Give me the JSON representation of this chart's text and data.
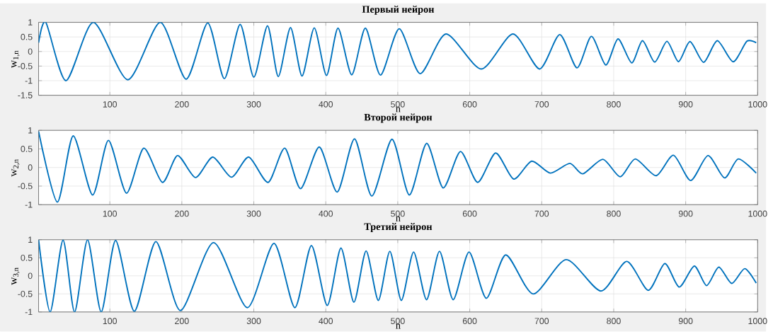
{
  "chart_data": [
    {
      "type": "line",
      "title": "Первый нейрон",
      "xlabel": "n",
      "ylabel": "w$_{1,n}$",
      "color": "#0072bd",
      "grid": true,
      "x": [
        1,
        11,
        39,
        77,
        125,
        170,
        206,
        236,
        259,
        281,
        300,
        319,
        334,
        351,
        367,
        384,
        401,
        417,
        436,
        455,
        476,
        502,
        531,
        567,
        616,
        660,
        697,
        725,
        749,
        769,
        789,
        806,
        825,
        840,
        857,
        874,
        890,
        906,
        925,
        944,
        966,
        985,
        998
      ],
      "values": [
        0.3,
        1,
        -1,
        1,
        -0.97,
        1,
        -0.95,
        0.98,
        -0.93,
        0.93,
        -0.88,
        0.88,
        -0.86,
        0.82,
        -0.84,
        0.81,
        -0.82,
        0.8,
        -0.8,
        0.8,
        -0.81,
        0.78,
        -0.76,
        0.6,
        -0.6,
        0.6,
        -0.6,
        0.58,
        -0.56,
        0.52,
        -0.46,
        0.43,
        -0.39,
        0.37,
        -0.36,
        0.35,
        -0.35,
        0.34,
        -0.37,
        0.37,
        -0.35,
        0.35,
        0.3
      ],
      "xlim": [
        1,
        1000
      ],
      "xticks": [
        100,
        200,
        300,
        400,
        500,
        600,
        700,
        800,
        900,
        1000
      ],
      "ylim": [
        -1.5,
        1
      ],
      "yticks": [
        -1.5,
        -1,
        -0.5,
        0,
        0.5,
        1
      ]
    },
    {
      "type": "line",
      "title": "Второй нейрон",
      "xlabel": "n",
      "ylabel": "w$_{2,n}$",
      "color": "#0072bd",
      "grid": true,
      "x": [
        1,
        27,
        49,
        76,
        98,
        123,
        147,
        173,
        194,
        219,
        243,
        269,
        293,
        320,
        343,
        365,
        391,
        416,
        440,
        464,
        492,
        516,
        540,
        563,
        587,
        611,
        636,
        661,
        686,
        712,
        739,
        757,
        785,
        809,
        830,
        859,
        883,
        907,
        931,
        954,
        973,
        998
      ],
      "values": [
        0.97,
        -0.93,
        0.85,
        -0.74,
        0.73,
        -0.69,
        0.52,
        -0.4,
        0.32,
        -0.27,
        0.28,
        -0.26,
        0.28,
        -0.4,
        0.52,
        -0.57,
        0.55,
        -0.66,
        0.77,
        -0.77,
        0.76,
        -0.74,
        0.65,
        -0.55,
        0.43,
        -0.4,
        0.39,
        -0.31,
        0.17,
        -0.15,
        0.11,
        -0.17,
        0.22,
        -0.25,
        0.23,
        -0.22,
        0.33,
        -0.35,
        0.32,
        -0.28,
        0.23,
        -0.15
      ],
      "xlim": [
        1,
        1000
      ],
      "xticks": [
        100,
        200,
        300,
        400,
        500,
        600,
        700,
        800,
        900,
        1000
      ],
      "ylim": [
        -1,
        1
      ],
      "yticks": [
        -1,
        -0.5,
        0,
        0.5,
        1
      ]
    },
    {
      "type": "line",
      "title": "Третий нейрон",
      "xlabel": "n",
      "ylabel": "w$_{3,n}$",
      "color": "#0072bd",
      "grid": true,
      "x": [
        1,
        17,
        35,
        51,
        69,
        88,
        108,
        134,
        164,
        198,
        244,
        291,
        328,
        357,
        380,
        402,
        421,
        439,
        456,
        473,
        489,
        505,
        522,
        540,
        558,
        577,
        599,
        623,
        650,
        688,
        734,
        782,
        818,
        848,
        871,
        891,
        912,
        929,
        946,
        964,
        982,
        998
      ],
      "values": [
        1,
        -1,
        0.99,
        -1,
        1,
        -1,
        0.98,
        -0.98,
        0.95,
        -0.96,
        0.92,
        -0.88,
        0.9,
        -0.88,
        0.84,
        -0.82,
        0.77,
        -0.73,
        0.69,
        -0.68,
        0.68,
        -0.68,
        0.66,
        -0.66,
        0.68,
        -0.66,
        0.66,
        -0.62,
        0.58,
        -0.5,
        0.45,
        -0.42,
        0.4,
        -0.4,
        0.34,
        -0.31,
        0.27,
        -0.27,
        0.24,
        -0.21,
        0.2,
        -0.2
      ],
      "xlim": [
        1,
        1000
      ],
      "xticks": [
        100,
        200,
        300,
        400,
        500,
        600,
        700,
        800,
        900,
        1000
      ],
      "ylim": [
        -1,
        1
      ],
      "yticks": [
        -1,
        -0.5,
        0,
        0.5,
        1
      ]
    }
  ]
}
